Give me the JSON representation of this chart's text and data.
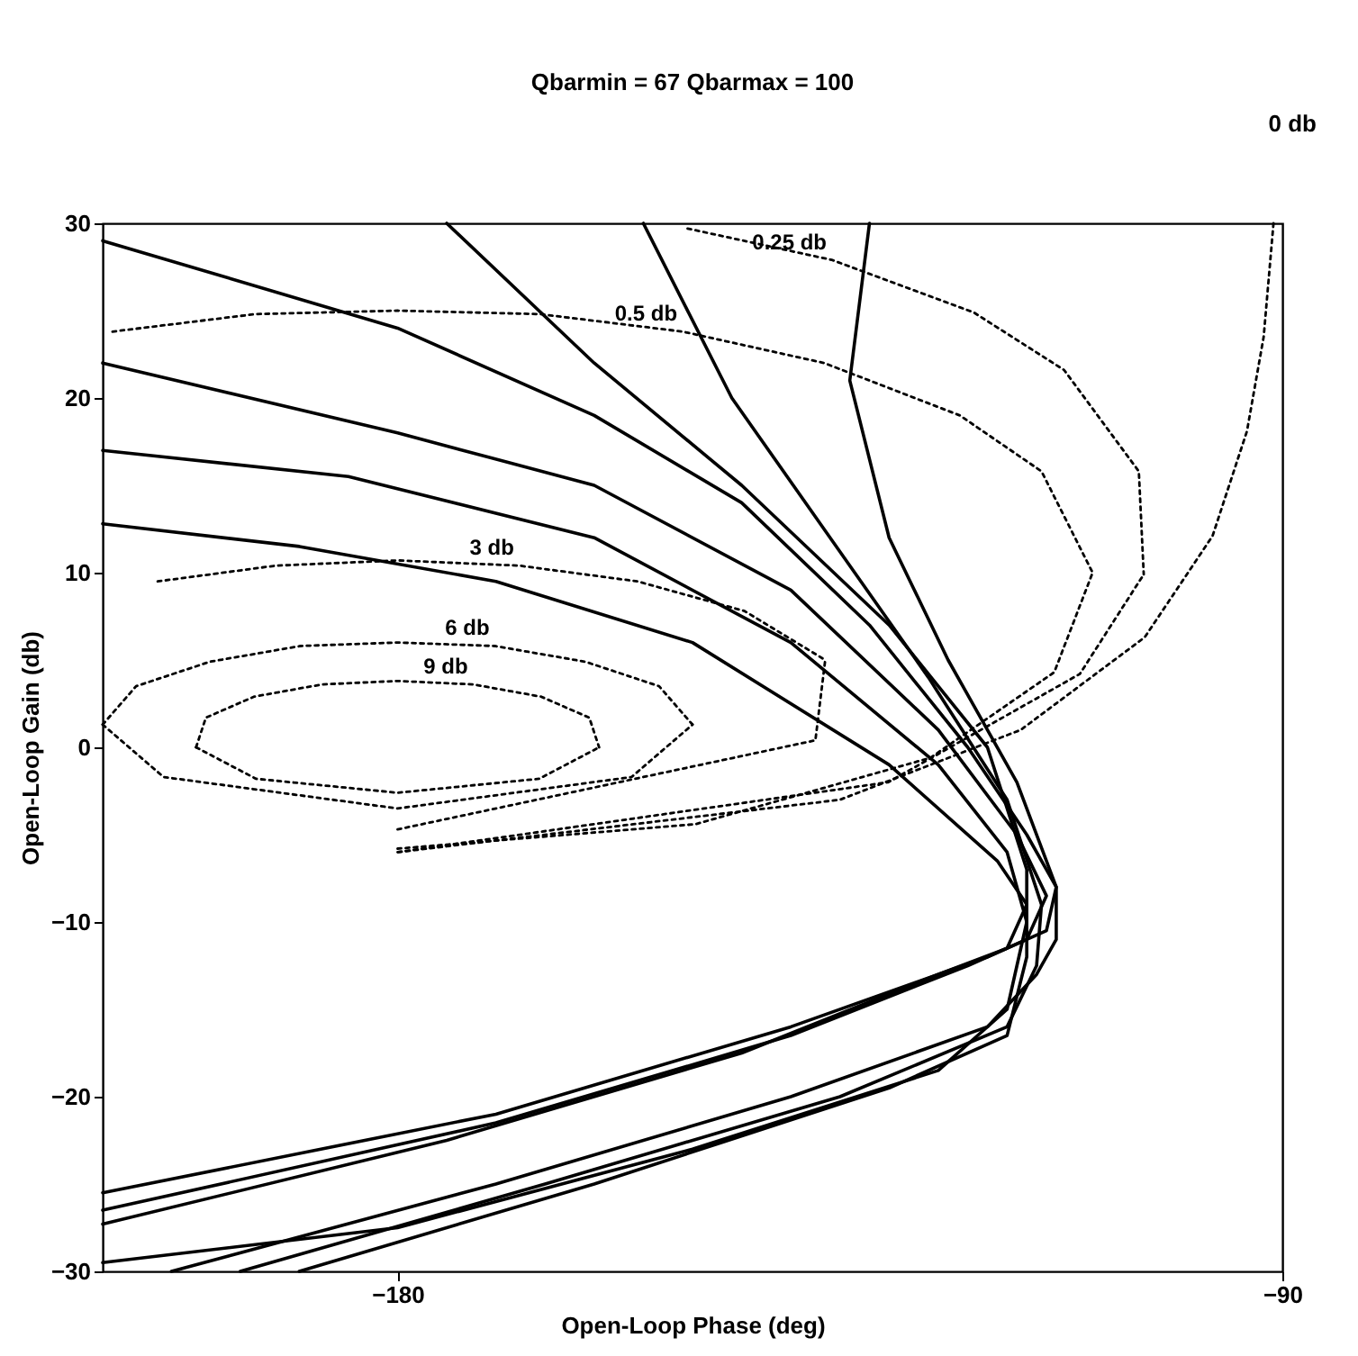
{
  "chart_data": {
    "type": "line",
    "title": "Qbarmin =  67 Qbarmax = 100",
    "xlabel": "Open-Loop Phase (deg)",
    "ylabel": "Open-Loop Gain (db)",
    "xlim": [
      -210,
      -90
    ],
    "xticks": [
      -180,
      -90
    ],
    "ylim": [
      -30,
      30
    ],
    "yticks": [
      -30,
      -20,
      -10,
      0,
      10,
      20,
      30
    ],
    "grid": false,
    "marker": "none",
    "line_style": "solid",
    "series": [
      {
        "color": "#000000",
        "x": [
          -210,
          -180,
          -160,
          -145,
          -132,
          -122,
          -116,
          -113,
          -114,
          -120,
          -140,
          -170,
          -210
        ],
        "values": [
          29,
          24,
          19,
          14,
          7,
          0,
          -5,
          -8,
          -10.5,
          -12,
          -16,
          -21,
          -25.5
        ]
      },
      {
        "color": "#000000",
        "x": [
          -210,
          -180,
          -160,
          -140,
          -125,
          -117,
          -114,
          -116,
          -122,
          -140,
          -170,
          -210
        ],
        "values": [
          22,
          18,
          15,
          9,
          1,
          -5,
          -8.5,
          -11,
          -12.5,
          -16.5,
          -21.5,
          -26.5
        ]
      },
      {
        "color": "#000000",
        "x": [
          -210,
          -190,
          -170,
          -150,
          -130,
          -119,
          -116,
          -118,
          -125,
          -145,
          -175,
          -210
        ],
        "values": [
          12.8,
          11.5,
          9.5,
          6,
          -1,
          -6.5,
          -9,
          -11.5,
          -13,
          -17.5,
          -22.5,
          -27.3
        ]
      },
      {
        "color": "#000000",
        "x": [
          -132,
          -134,
          -130,
          -124,
          -117,
          -113,
          -113,
          -115,
          -120,
          -140,
          -170,
          -203
        ],
        "values": [
          30,
          21,
          12,
          5,
          -2,
          -8,
          -11,
          -13,
          -16,
          -20,
          -25,
          -30
        ]
      },
      {
        "color": "#000000",
        "x": [
          -155,
          -146,
          -136,
          -126,
          -118,
          -114.5,
          -115,
          -118,
          -135,
          -165,
          -196
        ],
        "values": [
          30,
          20,
          12,
          4,
          -3,
          -9,
          -12.5,
          -16,
          -20,
          -25,
          -30
        ]
      },
      {
        "color": "#000000",
        "x": [
          -175,
          -160,
          -145,
          -130,
          -120,
          -116,
          -116,
          -118,
          -130,
          -160,
          -190
        ],
        "values": [
          30,
          22,
          15,
          7,
          0,
          -7,
          -12,
          -16.5,
          -19.5,
          -25,
          -30
        ]
      },
      {
        "color": "#000000",
        "x": [
          -210,
          -185,
          -160,
          -140,
          -125,
          -118,
          -116,
          -118,
          -125,
          -150,
          -180,
          -210
        ],
        "values": [
          17,
          15.5,
          12,
          6,
          -1,
          -6,
          -10,
          -15,
          -18.5,
          -23,
          -27.5,
          -29.5
        ]
      },
      {
        "color": "#000000",
        "line_style": "dotted",
        "x": [
          -210,
          -206.6,
          -199.1,
          -189.9,
          -180,
          -170.1,
          -160.9,
          -153.4,
          -150
        ],
        "values": [
          1.3,
          3.5,
          4.9,
          5.8,
          6,
          5.8,
          4.9,
          3.5,
          1.3
        ]
      },
      {
        "color": "#000000",
        "line_style": "dotted",
        "x": [
          -210,
          -203.8,
          -180,
          -156.2,
          -150
        ],
        "values": [
          1.3,
          -1.7,
          -3.5,
          -1.7,
          1.3
        ]
      },
      {
        "color": "#000000",
        "line_style": "dotted",
        "x": [
          -200.5,
          -199.5,
          -194.6,
          -187.7,
          -180,
          -172.3,
          -165.4,
          -160.5,
          -159.5
        ],
        "values": [
          0,
          1.7,
          2.9,
          3.6,
          3.8,
          3.6,
          2.9,
          1.7,
          0
        ]
      },
      {
        "color": "#000000",
        "line_style": "dotted",
        "x": [
          -200.5,
          -194.4,
          -180,
          -165.6,
          -159.5
        ],
        "values": [
          0,
          -1.8,
          -2.6,
          -1.8,
          0
        ]
      },
      {
        "color": "#000000",
        "line_style": "dotted",
        "x": [
          -204.4,
          -192.4,
          -180,
          -167.6,
          -155.6,
          -144.7,
          -136.5
        ],
        "values": [
          9.5,
          10.4,
          10.7,
          10.4,
          9.5,
          7.8,
          5
        ]
      },
      {
        "color": "#000000",
        "line_style": "dotted",
        "x": [
          -180,
          -137.5,
          -136.5
        ],
        "values": [
          -4.7,
          0.4,
          5
        ]
      },
      {
        "color": "#000000",
        "line_style": "dotted",
        "x": [
          -209,
          -194.5,
          -180,
          -165.5,
          -151,
          -136.6,
          -122.8,
          -114.5,
          -109.3
        ],
        "values": [
          23.8,
          24.8,
          25,
          24.8,
          23.8,
          22,
          19,
          15.8,
          10
        ]
      },
      {
        "color": "#000000",
        "line_style": "dotted",
        "x": [
          -180,
          -149.7,
          -125.8,
          -113.2,
          -109.3
        ],
        "values": [
          -5.8,
          -4.4,
          -0.6,
          4.3,
          10
        ]
      },
      {
        "color": "#000000",
        "line_style": "dotted",
        "x": [
          -150.5,
          -135.8,
          -121.4,
          -112.2,
          -104.6,
          -104.1
        ],
        "values": [
          29.7,
          27.9,
          24.9,
          21.6,
          15.8,
          9.9
        ]
      },
      {
        "color": "#000000",
        "line_style": "dotted",
        "x": [
          -180,
          -130.1,
          -110.6,
          -104.1
        ],
        "values": [
          -6,
          -2,
          4.2,
          9.9
        ]
      },
      {
        "color": "#000000",
        "line_style": "dotted",
        "x": [
          -90.9,
          -91.9,
          -93.6,
          -97.1,
          -104,
          -116.6,
          -135,
          -180
        ],
        "values": [
          30,
          23.5,
          18.1,
          12.1,
          6.3,
          1,
          -3,
          -6
        ]
      }
    ],
    "annotations": [
      {
        "text": "0.25 db",
        "x": -135.8,
        "y": 27.9
      },
      {
        "text": "0.5 db",
        "x": -151,
        "y": 23.8
      },
      {
        "text": "3 db",
        "x": -167.6,
        "y": 10.4
      },
      {
        "text": "6 db",
        "x": -170.1,
        "y": 5.8
      },
      {
        "text": "9 db",
        "x": -172.3,
        "y": 3.6
      },
      "0 db"
    ]
  }
}
